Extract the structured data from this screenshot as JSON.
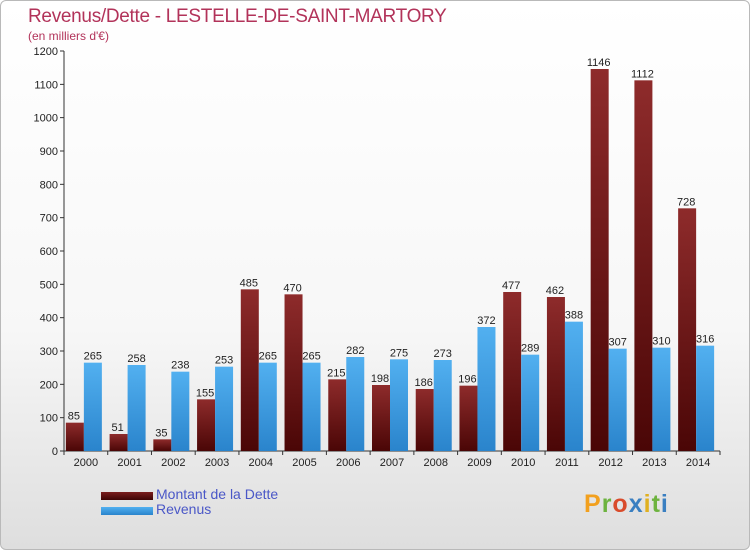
{
  "header": {
    "title": "Revenus/Dette - LESTELLE-DE-SAINT-MARTORY",
    "subtitle": "(en milliers d'€)"
  },
  "legend": {
    "items": [
      {
        "label": "Montant de la Dette",
        "color": "#7a1d1d"
      },
      {
        "label": "Revenus",
        "color": "#3d9be0"
      }
    ]
  },
  "logo": {
    "text": "Proxiti",
    "colors": [
      "#f2a01e",
      "#6db33f",
      "#d94b2b",
      "#3a7fc1",
      "#e0b020",
      "#6db33f",
      "#3a7fc1"
    ]
  },
  "chart_data": {
    "type": "bar",
    "categories": [
      "2000",
      "2001",
      "2002",
      "2003",
      "2004",
      "2005",
      "2006",
      "2007",
      "2008",
      "2009",
      "2010",
      "2011",
      "2012",
      "2013",
      "2014"
    ],
    "series": [
      {
        "name": "Montant de la Dette",
        "values": [
          85,
          51,
          35,
          155,
          485,
          470,
          215,
          198,
          186,
          196,
          477,
          462,
          1146,
          1112,
          728
        ]
      },
      {
        "name": "Revenus",
        "values": [
          265,
          258,
          238,
          253,
          265,
          265,
          282,
          275,
          273,
          372,
          289,
          388,
          307,
          310,
          316
        ]
      }
    ],
    "title": "Revenus/Dette - LESTELLE-DE-SAINT-MARTORY",
    "subtitle": "(en milliers d'€)",
    "ylim": [
      0,
      1200
    ],
    "yticks": [
      0,
      100,
      200,
      300,
      400,
      500,
      600,
      700,
      800,
      900,
      1000,
      1100,
      1200
    ],
    "grid": false,
    "legend_position": "bottom-left"
  }
}
